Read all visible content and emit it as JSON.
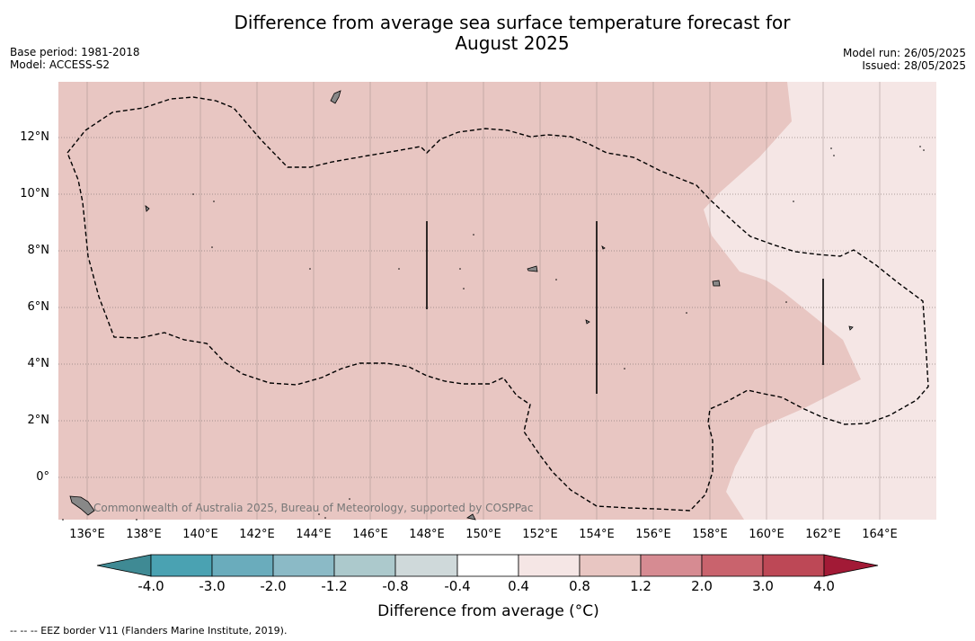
{
  "title_line1": "Difference from average sea surface temperature forecast for",
  "title_line2": "August 2025",
  "meta": {
    "base_period": "Base period: 1981-2018",
    "model": "Model: ACCESS-S2",
    "model_run": "Model run: 26/05/2025",
    "issued": "Issued: 28/05/2025"
  },
  "credit": "Commonwealth of Australia 2025, Bureau of Meteorology, supported by COSPPac",
  "footnote": "--  --  -- EEZ border V11 (Flanders Marine Institute, 2019).",
  "colorbar": {
    "title": "Difference from average (°C)",
    "labels": [
      "-4.0",
      "-3.0",
      "-2.0",
      "-1.2",
      "-0.8",
      "-0.4",
      "0.4",
      "0.8",
      "1.2",
      "2.0",
      "3.0",
      "4.0"
    ],
    "colors": [
      "#3f8a94",
      "#4aa2b2",
      "#6aacbc",
      "#8bbac6",
      "#acc9cc",
      "#cfd9da",
      "#ffffff",
      "#f5e6e5",
      "#e8c6c2",
      "#d68b92",
      "#c9636d",
      "#bd4856",
      "#a21a36"
    ]
  },
  "axes": {
    "lon_labels": [
      "136°E",
      "138°E",
      "140°E",
      "142°E",
      "144°E",
      "146°E",
      "148°E",
      "150°E",
      "152°E",
      "154°E",
      "156°E",
      "158°E",
      "160°E",
      "162°E",
      "164°E"
    ],
    "lat_labels": [
      "12°N",
      "10°N",
      "8°N",
      "6°N",
      "4°N",
      "2°N",
      "0°"
    ]
  },
  "map_colors": {
    "warm": "#e8c6c2",
    "mild": "#f5e6e5"
  }
}
